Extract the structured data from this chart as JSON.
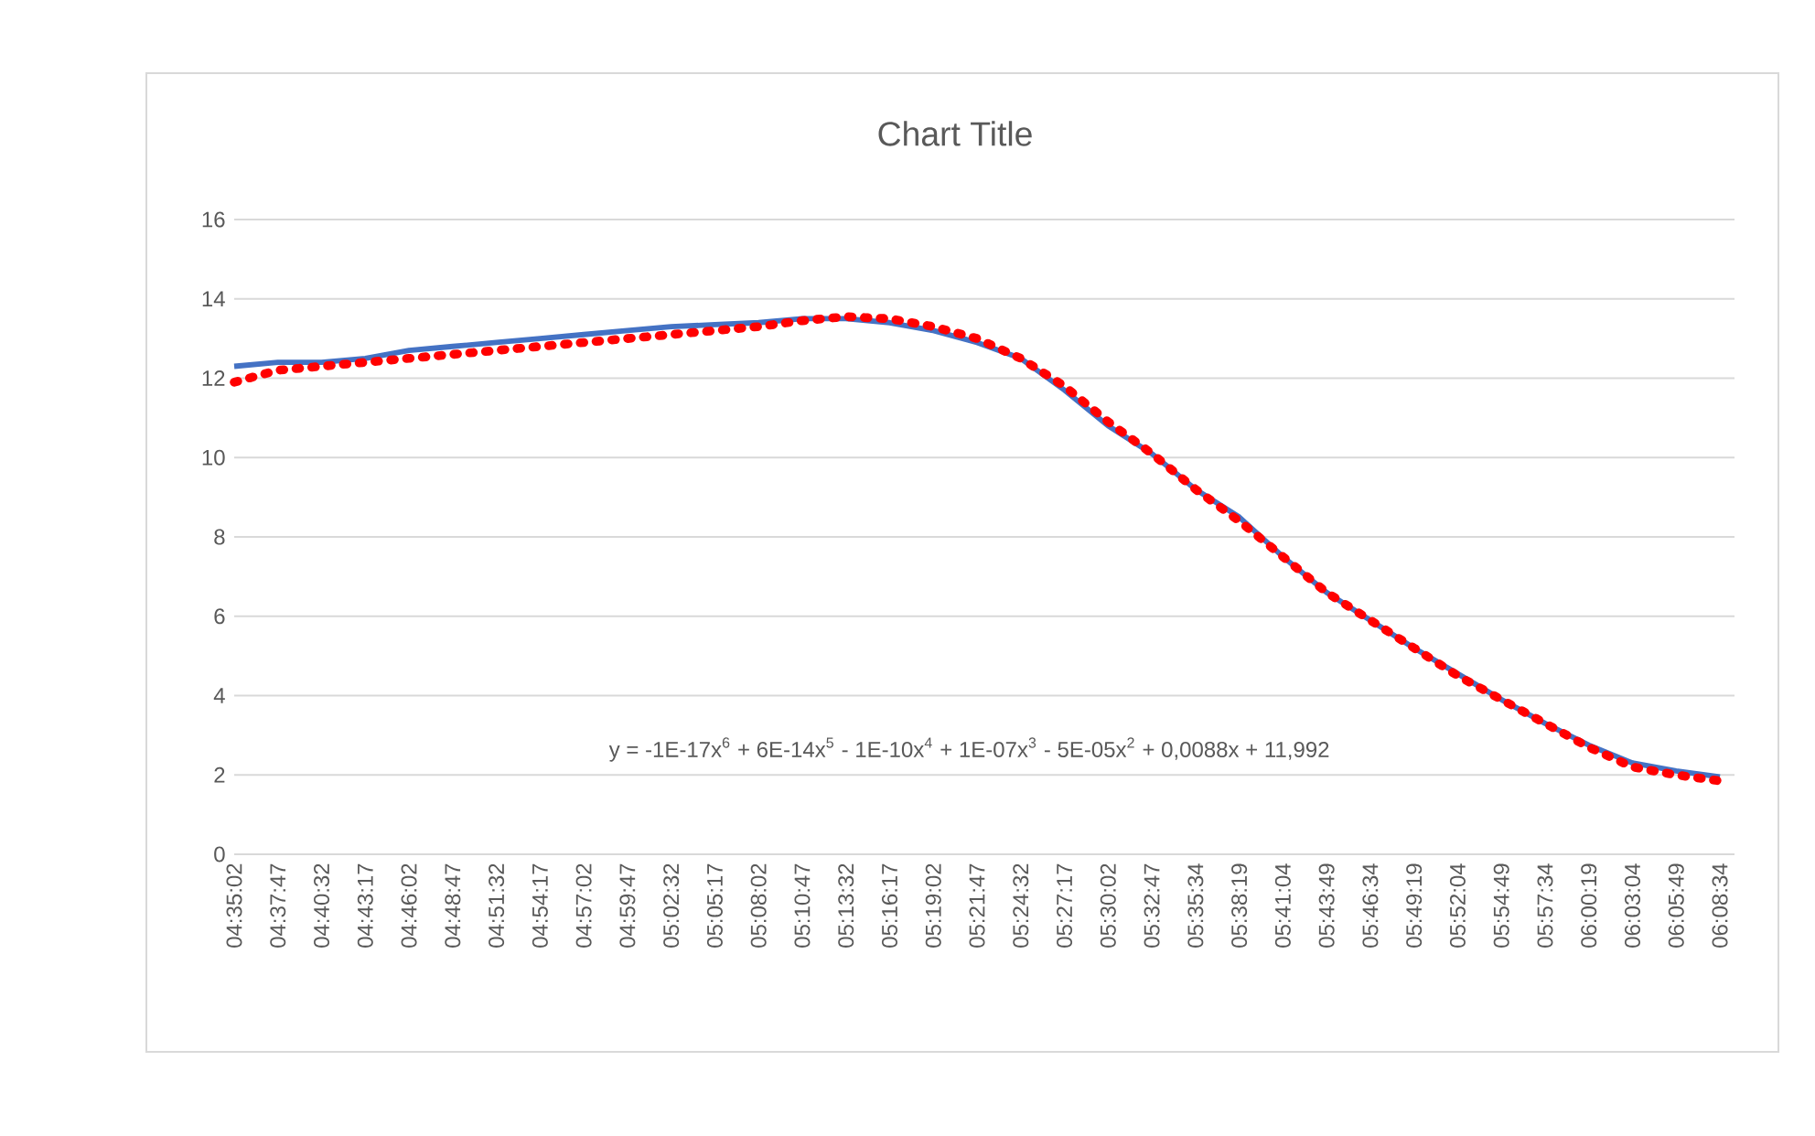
{
  "chart_data": {
    "type": "line",
    "title": "Chart Title",
    "annotations": [
      "y = -1E-17x$^{6}$ + 6E-14x$^{5}$ - 1E-10x$^{4}$ + 1E-07x$^{3}$ - 5E-05x$^{2}$ + 0,0088x + 11,992"
    ],
    "categories": [
      "04:35:02",
      "04:37:47",
      "04:40:32",
      "04:43:17",
      "04:46:02",
      "04:48:47",
      "04:51:32",
      "04:54:17",
      "04:57:02",
      "04:59:47",
      "05:02:32",
      "05:05:17",
      "05:08:02",
      "05:10:47",
      "05:13:32",
      "05:16:17",
      "05:19:02",
      "05:21:47",
      "05:24:32",
      "05:27:17",
      "05:30:02",
      "05:32:47",
      "05:35:34",
      "05:38:19",
      "05:41:04",
      "05:43:49",
      "05:46:34",
      "05:49:19",
      "05:52:04",
      "05:54:49",
      "05:57:34",
      "06:00:19",
      "06:03:04",
      "06:05:49",
      "06:08:34"
    ],
    "ylim": [
      0,
      16
    ],
    "yticks": [
      0,
      2,
      4,
      6,
      8,
      10,
      12,
      14,
      16
    ],
    "grid": "y",
    "series": [
      {
        "color": "#4472c4",
        "line_style": "solid",
        "values": [
          12.3,
          12.4,
          12.4,
          12.5,
          12.7,
          12.8,
          12.9,
          13.0,
          13.1,
          13.2,
          13.3,
          13.35,
          13.4,
          13.5,
          13.5,
          13.4,
          13.2,
          12.9,
          12.5,
          11.7,
          10.8,
          10.1,
          9.2,
          8.5,
          7.5,
          6.6,
          5.9,
          5.2,
          4.55,
          3.9,
          3.3,
          2.75,
          2.3,
          2.1,
          1.95
        ]
      },
      {
        "color": "#ff0000",
        "line_style": "dotted",
        "values": [
          11.9,
          12.2,
          12.3,
          12.4,
          12.5,
          12.6,
          12.7,
          12.8,
          12.9,
          13.0,
          13.1,
          13.2,
          13.3,
          13.45,
          13.55,
          13.5,
          13.3,
          13.0,
          12.5,
          11.8,
          10.9,
          10.1,
          9.2,
          8.4,
          7.5,
          6.6,
          5.9,
          5.2,
          4.5,
          3.9,
          3.3,
          2.7,
          2.2,
          2.0,
          1.85
        ]
      }
    ]
  }
}
